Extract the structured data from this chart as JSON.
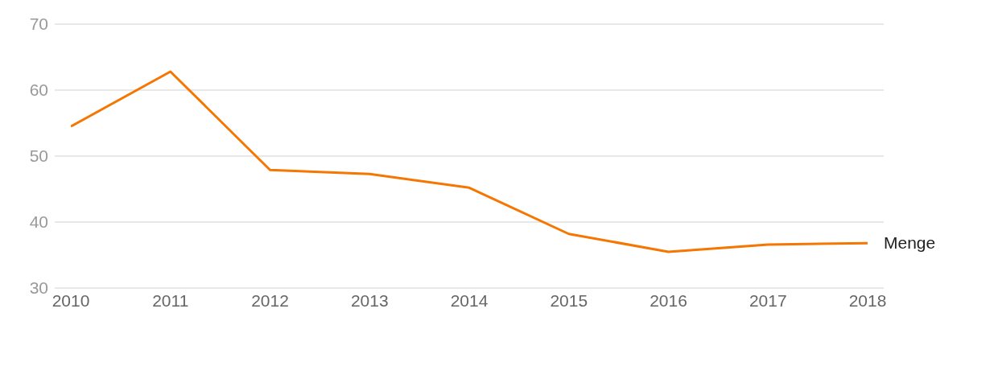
{
  "chart_data": {
    "type": "line",
    "categories": [
      "2010",
      "2011",
      "2012",
      "2013",
      "2014",
      "2015",
      "2016",
      "2017",
      "2018"
    ],
    "series": [
      {
        "name": "Menge",
        "color": "#f57600",
        "values": [
          54.5,
          62.8,
          47.9,
          47.3,
          45.2,
          38.2,
          35.5,
          36.6,
          36.8
        ]
      }
    ],
    "ylim": [
      30,
      70
    ],
    "yticks": [
      30,
      40,
      50,
      60,
      70
    ],
    "grid": "y",
    "marker": "none",
    "line_style": "solid"
  }
}
